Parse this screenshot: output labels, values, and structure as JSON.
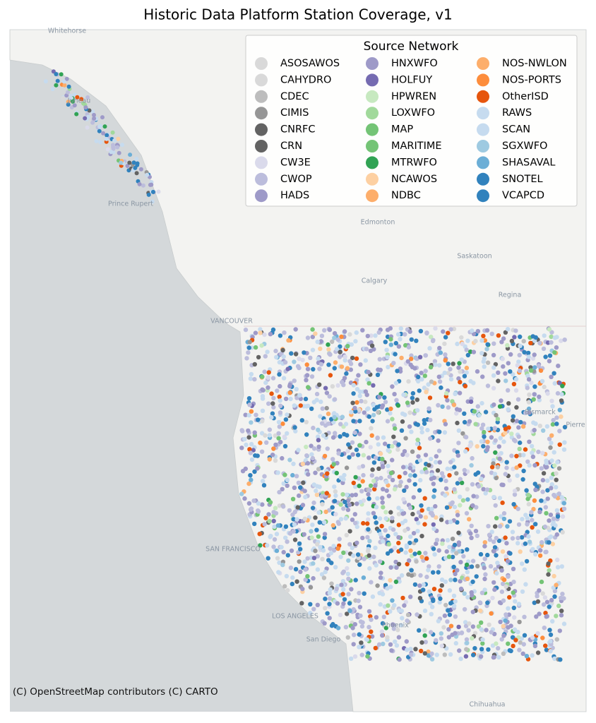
{
  "map": {
    "title": "Historic Data Platform Station Coverage, v1",
    "legend": {
      "title": "Source Network",
      "items": [
        {
          "name": "ASOSAWOS",
          "color": "#d9d9d9"
        },
        {
          "name": "CAHYDRO",
          "color": "#d9d9d9"
        },
        {
          "name": "CDEC",
          "color": "#bdbdbd"
        },
        {
          "name": "CIMIS",
          "color": "#969696"
        },
        {
          "name": "CNRFC",
          "color": "#636363"
        },
        {
          "name": "CRN",
          "color": "#636363"
        },
        {
          "name": "CW3E",
          "color": "#dadaeb"
        },
        {
          "name": "CWOP",
          "color": "#bcbddc"
        },
        {
          "name": "HADS",
          "color": "#9e9ac8"
        },
        {
          "name": "HNXWFO",
          "color": "#9e9ac8"
        },
        {
          "name": "HOLFUY",
          "color": "#756bb1"
        },
        {
          "name": "HPWREN",
          "color": "#c7e9c0"
        },
        {
          "name": "LOXWFO",
          "color": "#a1d99b"
        },
        {
          "name": "MAP",
          "color": "#74c476"
        },
        {
          "name": "MARITIME",
          "color": "#74c476"
        },
        {
          "name": "MTRWFO",
          "color": "#31a354"
        },
        {
          "name": "NCAWOS",
          "color": "#fdd0a2"
        },
        {
          "name": "NDBC",
          "color": "#fdae6b"
        },
        {
          "name": "NOS-NWLON",
          "color": "#fdae6b"
        },
        {
          "name": "NOS-PORTS",
          "color": "#fd8d3c"
        },
        {
          "name": "OtherISD",
          "color": "#e6550d"
        },
        {
          "name": "RAWS",
          "color": "#c6dbef"
        },
        {
          "name": "SCAN",
          "color": "#c6dbef"
        },
        {
          "name": "SGXWFO",
          "color": "#9ecae1"
        },
        {
          "name": "SHASAVAL",
          "color": "#6baed6"
        },
        {
          "name": "SNOTEL",
          "color": "#3182bd"
        },
        {
          "name": "VCAPCD",
          "color": "#3182bd"
        }
      ]
    },
    "place_labels": [
      "Whitehorse",
      "Juneau",
      "Prince Rupert",
      "Edmonton",
      "Saskatoon",
      "Calgary",
      "Regina",
      "VANCOUVER",
      "Bismarck",
      "Pierre",
      "SAN FRANCISCO",
      "LOS ANGELES",
      "San Diego",
      "Phoenix",
      "Chihuahua"
    ],
    "attribution": "(C) OpenStreetMap contributors (C) CARTO"
  }
}
